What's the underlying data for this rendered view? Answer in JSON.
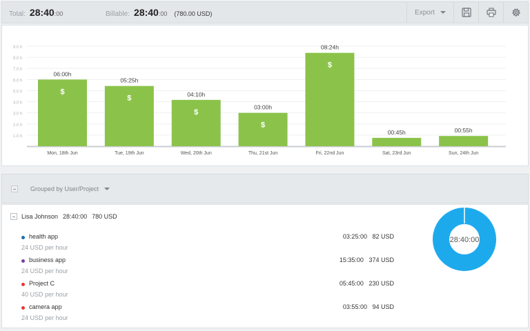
{
  "summary": {
    "total_label": "Total:",
    "total_main": "28:40",
    "total_sec": ":00",
    "billable_label": "Billable:",
    "billable_main": "28:40",
    "billable_sec": ":00",
    "billable_amount": "(780.00 USD)",
    "export_label": "Export"
  },
  "colors": {
    "bar": "#8bc34a",
    "donut": "#1daaed",
    "accent_blue": "#1f6fb0",
    "accent_purple": "#7b3fa0",
    "accent_red": "#e53935"
  },
  "chart_data": {
    "type": "bar",
    "categories": [
      "Mon, 18th Jun",
      "Tue, 19th Jun",
      "Wed, 20th Jun",
      "Thu, 21st Jun",
      "Fri, 22nd Jun",
      "Sat, 23rd Jun",
      "Sun, 24th Jun"
    ],
    "values": [
      6.0,
      5.42,
      4.17,
      3.0,
      8.4,
      0.75,
      0.92
    ],
    "data_labels": [
      "06:00h",
      "05:25h",
      "04:10h",
      "03:00h",
      "08:24h",
      "00:45h",
      "00:55h"
    ],
    "billable_marker": "$",
    "yticks": [
      "1.0 h",
      "2.0 h",
      "3.0 h",
      "4.0 h",
      "5.0 h",
      "6.0 h",
      "7.0 h",
      "8.0 h",
      "9.0 h"
    ],
    "ylim": [
      0,
      9
    ],
    "grid": true,
    "title": "",
    "xlabel": "",
    "ylabel": ""
  },
  "group": {
    "label": "Grouped by User/Project"
  },
  "report": {
    "user_name": "Lisa Johnson",
    "user_time": "28:40:00",
    "user_amount": "780 USD",
    "projects": [
      {
        "name": "health app",
        "rate": "24 USD per hour",
        "time": "03:25:00",
        "amount": "82 USD",
        "color": "#1f6fb0"
      },
      {
        "name": "business app",
        "rate": "24 USD per hour",
        "time": "15:35:00",
        "amount": "374 USD",
        "color": "#7b3fa0"
      },
      {
        "name": "Project C",
        "rate": "40 USD per hour",
        "time": "05:45:00",
        "amount": "230 USD",
        "color": "#e53935"
      },
      {
        "name": "camera app",
        "rate": "24 USD per hour",
        "time": "03:55:00",
        "amount": "94 USD",
        "color": "#e53935"
      }
    ],
    "donut_label": "28:40:00"
  }
}
